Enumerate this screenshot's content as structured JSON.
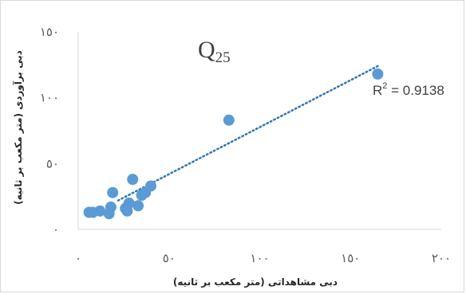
{
  "chart_data": {
    "type": "scatter",
    "colors": {
      "points": "#5b9bd5",
      "trendline": "#2e75b6",
      "frame": "#d9d9d9",
      "axis": "#d9d9d9"
    },
    "xlim": [
      0,
      200
    ],
    "ylim": [
      0,
      150
    ],
    "x_ticks": [
      0,
      50,
      100,
      150,
      200
    ],
    "x_tick_labels": [
      "٠",
      "٥٠",
      "١٠٠",
      "١٥٠",
      "٢٠٠"
    ],
    "y_ticks": [
      0,
      50,
      100,
      150
    ],
    "y_tick_labels": [
      "٠",
      "٥٠",
      "١٠٠",
      "١٥٠"
    ],
    "xlabel": "دبی مشاهداتی (متر مکعب بر ثانیه)",
    "ylabel": "دبی برآوردی (متر مکعب بر ثانیه)",
    "grid": false,
    "annotation_main": "Q",
    "annotation_sub": "25",
    "r2_label": "R",
    "r2_sup": "2",
    "r2_value": " = 0.9138",
    "trendline": {
      "type": "linear",
      "style": "dotted",
      "x": [
        22,
        165
      ],
      "y": [
        22,
        124
      ]
    },
    "points": [
      {
        "x": 6,
        "y": 13
      },
      {
        "x": 8,
        "y": 13
      },
      {
        "x": 12,
        "y": 14
      },
      {
        "x": 17,
        "y": 12
      },
      {
        "x": 18,
        "y": 17
      },
      {
        "x": 19,
        "y": 28
      },
      {
        "x": 26,
        "y": 16
      },
      {
        "x": 27,
        "y": 14
      },
      {
        "x": 28,
        "y": 20
      },
      {
        "x": 30,
        "y": 38
      },
      {
        "x": 33,
        "y": 18
      },
      {
        "x": 35,
        "y": 26
      },
      {
        "x": 37,
        "y": 28
      },
      {
        "x": 40,
        "y": 33
      },
      {
        "x": 83,
        "y": 83
      },
      {
        "x": 165,
        "y": 118
      }
    ]
  }
}
